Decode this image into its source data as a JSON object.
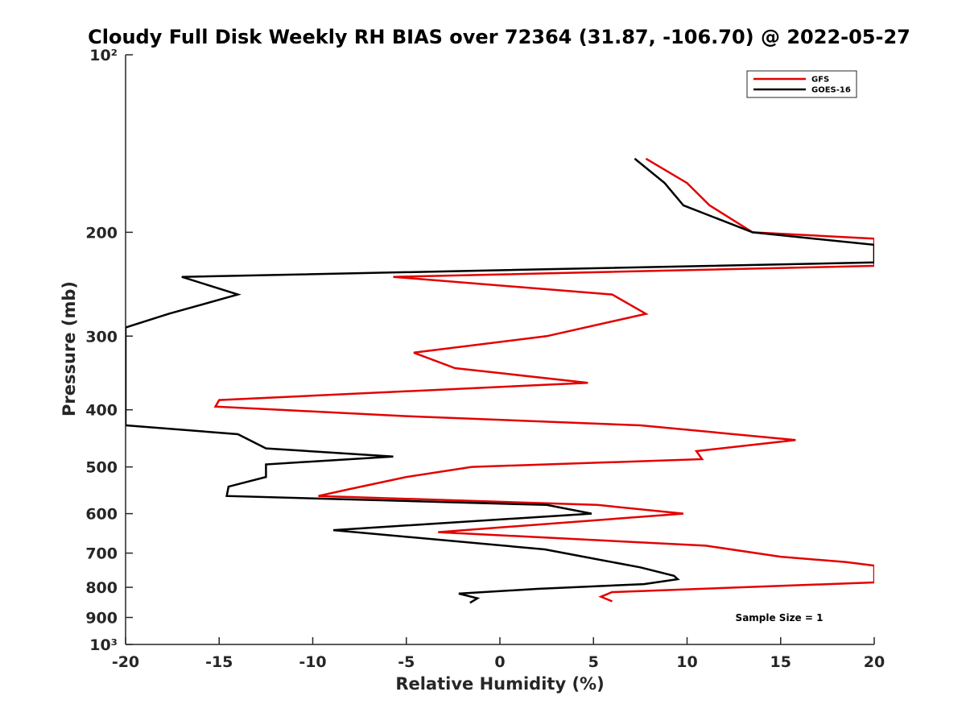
{
  "chart_data": {
    "type": "line",
    "title": "Cloudy Full Disk Weekly RH BIAS over 72364 (31.87, -106.70) @ 2022-05-27",
    "xlabel": "Relative Humidity (%)",
    "ylabel": "Pressure (mb)",
    "xlim": [
      -20,
      20
    ],
    "ylim": [
      100,
      1000
    ],
    "yscale": "log",
    "yreversed": true,
    "grid": false,
    "legend_position": "top-right",
    "x_ticks": [
      -20,
      -15,
      -10,
      -5,
      0,
      5,
      10,
      15,
      20
    ],
    "x_tick_labels": [
      "-20",
      "-15",
      "-10",
      "-5",
      "0",
      "5",
      "10",
      "15",
      "20"
    ],
    "y_ticks": [
      100,
      200,
      300,
      400,
      500,
      600,
      700,
      800,
      900,
      1000
    ],
    "y_tick_labels": [
      "10²",
      "200",
      "300",
      "400",
      "500",
      "600",
      "700",
      "800",
      "900",
      "10³"
    ],
    "annotation": "Sample Size = 1",
    "series": [
      {
        "name": "GFS",
        "color": "#e30000",
        "points": [
          [
            7.8,
            150
          ],
          [
            10,
            165
          ],
          [
            11.2,
            180
          ],
          [
            13.5,
            200
          ],
          [
            20,
            205
          ],
          [
            20,
            228
          ],
          [
            -5.7,
            238
          ],
          [
            6,
            255
          ],
          [
            7.8,
            275
          ],
          [
            2.5,
            300
          ],
          [
            -4.6,
            320
          ],
          [
            -2.4,
            340
          ],
          [
            4.7,
            360
          ],
          [
            -15,
            385
          ],
          [
            -15.2,
            395
          ],
          [
            -5,
            410
          ],
          [
            7.5,
            425
          ],
          [
            15.8,
            450
          ],
          [
            10.5,
            470
          ],
          [
            10.8,
            485
          ],
          [
            -1.5,
            500
          ],
          [
            -5,
            520
          ],
          [
            -8,
            545
          ],
          [
            -9.7,
            560
          ],
          [
            5.2,
            580
          ],
          [
            9.8,
            600
          ],
          [
            -3.3,
            645
          ],
          [
            11,
            680
          ],
          [
            15,
            710
          ],
          [
            18.5,
            725
          ],
          [
            20,
            735
          ],
          [
            20,
            785
          ],
          [
            6,
            815
          ],
          [
            5.4,
            830
          ],
          [
            6,
            845
          ]
        ]
      },
      {
        "name": "GOES-16",
        "color": "#000000",
        "points": [
          [
            7.2,
            150
          ],
          [
            8.8,
            165
          ],
          [
            9.8,
            180
          ],
          [
            13.5,
            200
          ],
          [
            20,
            210
          ],
          [
            20,
            225
          ],
          [
            -17,
            238
          ],
          [
            -14,
            255
          ],
          [
            -17.7,
            275
          ],
          [
            -20,
            290
          ],
          [
            -20,
            425
          ],
          [
            -14,
            440
          ],
          [
            -12.5,
            465
          ],
          [
            -5.7,
            480
          ],
          [
            -12.5,
            495
          ],
          [
            -12.5,
            520
          ],
          [
            -14.5,
            540
          ],
          [
            -14.6,
            560
          ],
          [
            2.5,
            580
          ],
          [
            4.9,
            600
          ],
          [
            -8.9,
            640
          ],
          [
            2.4,
            690
          ],
          [
            5.5,
            720
          ],
          [
            7.5,
            740
          ],
          [
            9.3,
            765
          ],
          [
            9.5,
            775
          ],
          [
            7.7,
            790
          ],
          [
            2,
            805
          ],
          [
            -2.2,
            820
          ],
          [
            -1.2,
            835
          ],
          [
            -1.6,
            850
          ]
        ]
      }
    ]
  }
}
